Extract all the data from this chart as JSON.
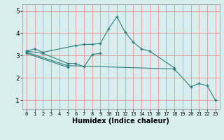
{
  "xlabel": "Humidex (Indice chaleur)",
  "x_ticks": [
    0,
    1,
    2,
    3,
    4,
    5,
    6,
    7,
    8,
    9,
    10,
    11,
    12,
    13,
    14,
    15,
    16,
    17,
    18,
    19,
    20,
    21,
    22,
    23
  ],
  "ylim": [
    0.6,
    5.3
  ],
  "xlim": [
    -0.5,
    23.5
  ],
  "yticks": [
    1,
    2,
    3,
    4,
    5
  ],
  "line_color": "#2e7d7d",
  "bg_color": "#d8eeee",
  "grid_color": "#e88888",
  "lines_connected": [
    {
      "x": [
        0,
        1,
        2,
        6,
        7,
        8,
        9,
        10,
        11,
        12,
        13,
        14,
        15,
        18
      ],
      "y": [
        3.2,
        3.3,
        3.15,
        3.45,
        3.5,
        3.5,
        3.55,
        4.2,
        4.75,
        4.05,
        3.6,
        3.3,
        3.2,
        2.45
      ]
    },
    {
      "x": [
        0,
        2,
        5,
        6,
        7,
        8,
        9
      ],
      "y": [
        3.2,
        3.1,
        2.65,
        2.65,
        2.5,
        3.05,
        3.1
      ]
    },
    {
      "x": [
        0,
        5,
        18,
        20,
        21,
        22,
        23
      ],
      "y": [
        3.15,
        2.55,
        2.4,
        1.6,
        1.75,
        1.65,
        1.0
      ]
    },
    {
      "x": [
        0,
        5
      ],
      "y": [
        3.1,
        2.48
      ]
    }
  ],
  "xlabel_fontsize": 7,
  "xtick_fontsize": 5,
  "ytick_fontsize": 6.5
}
